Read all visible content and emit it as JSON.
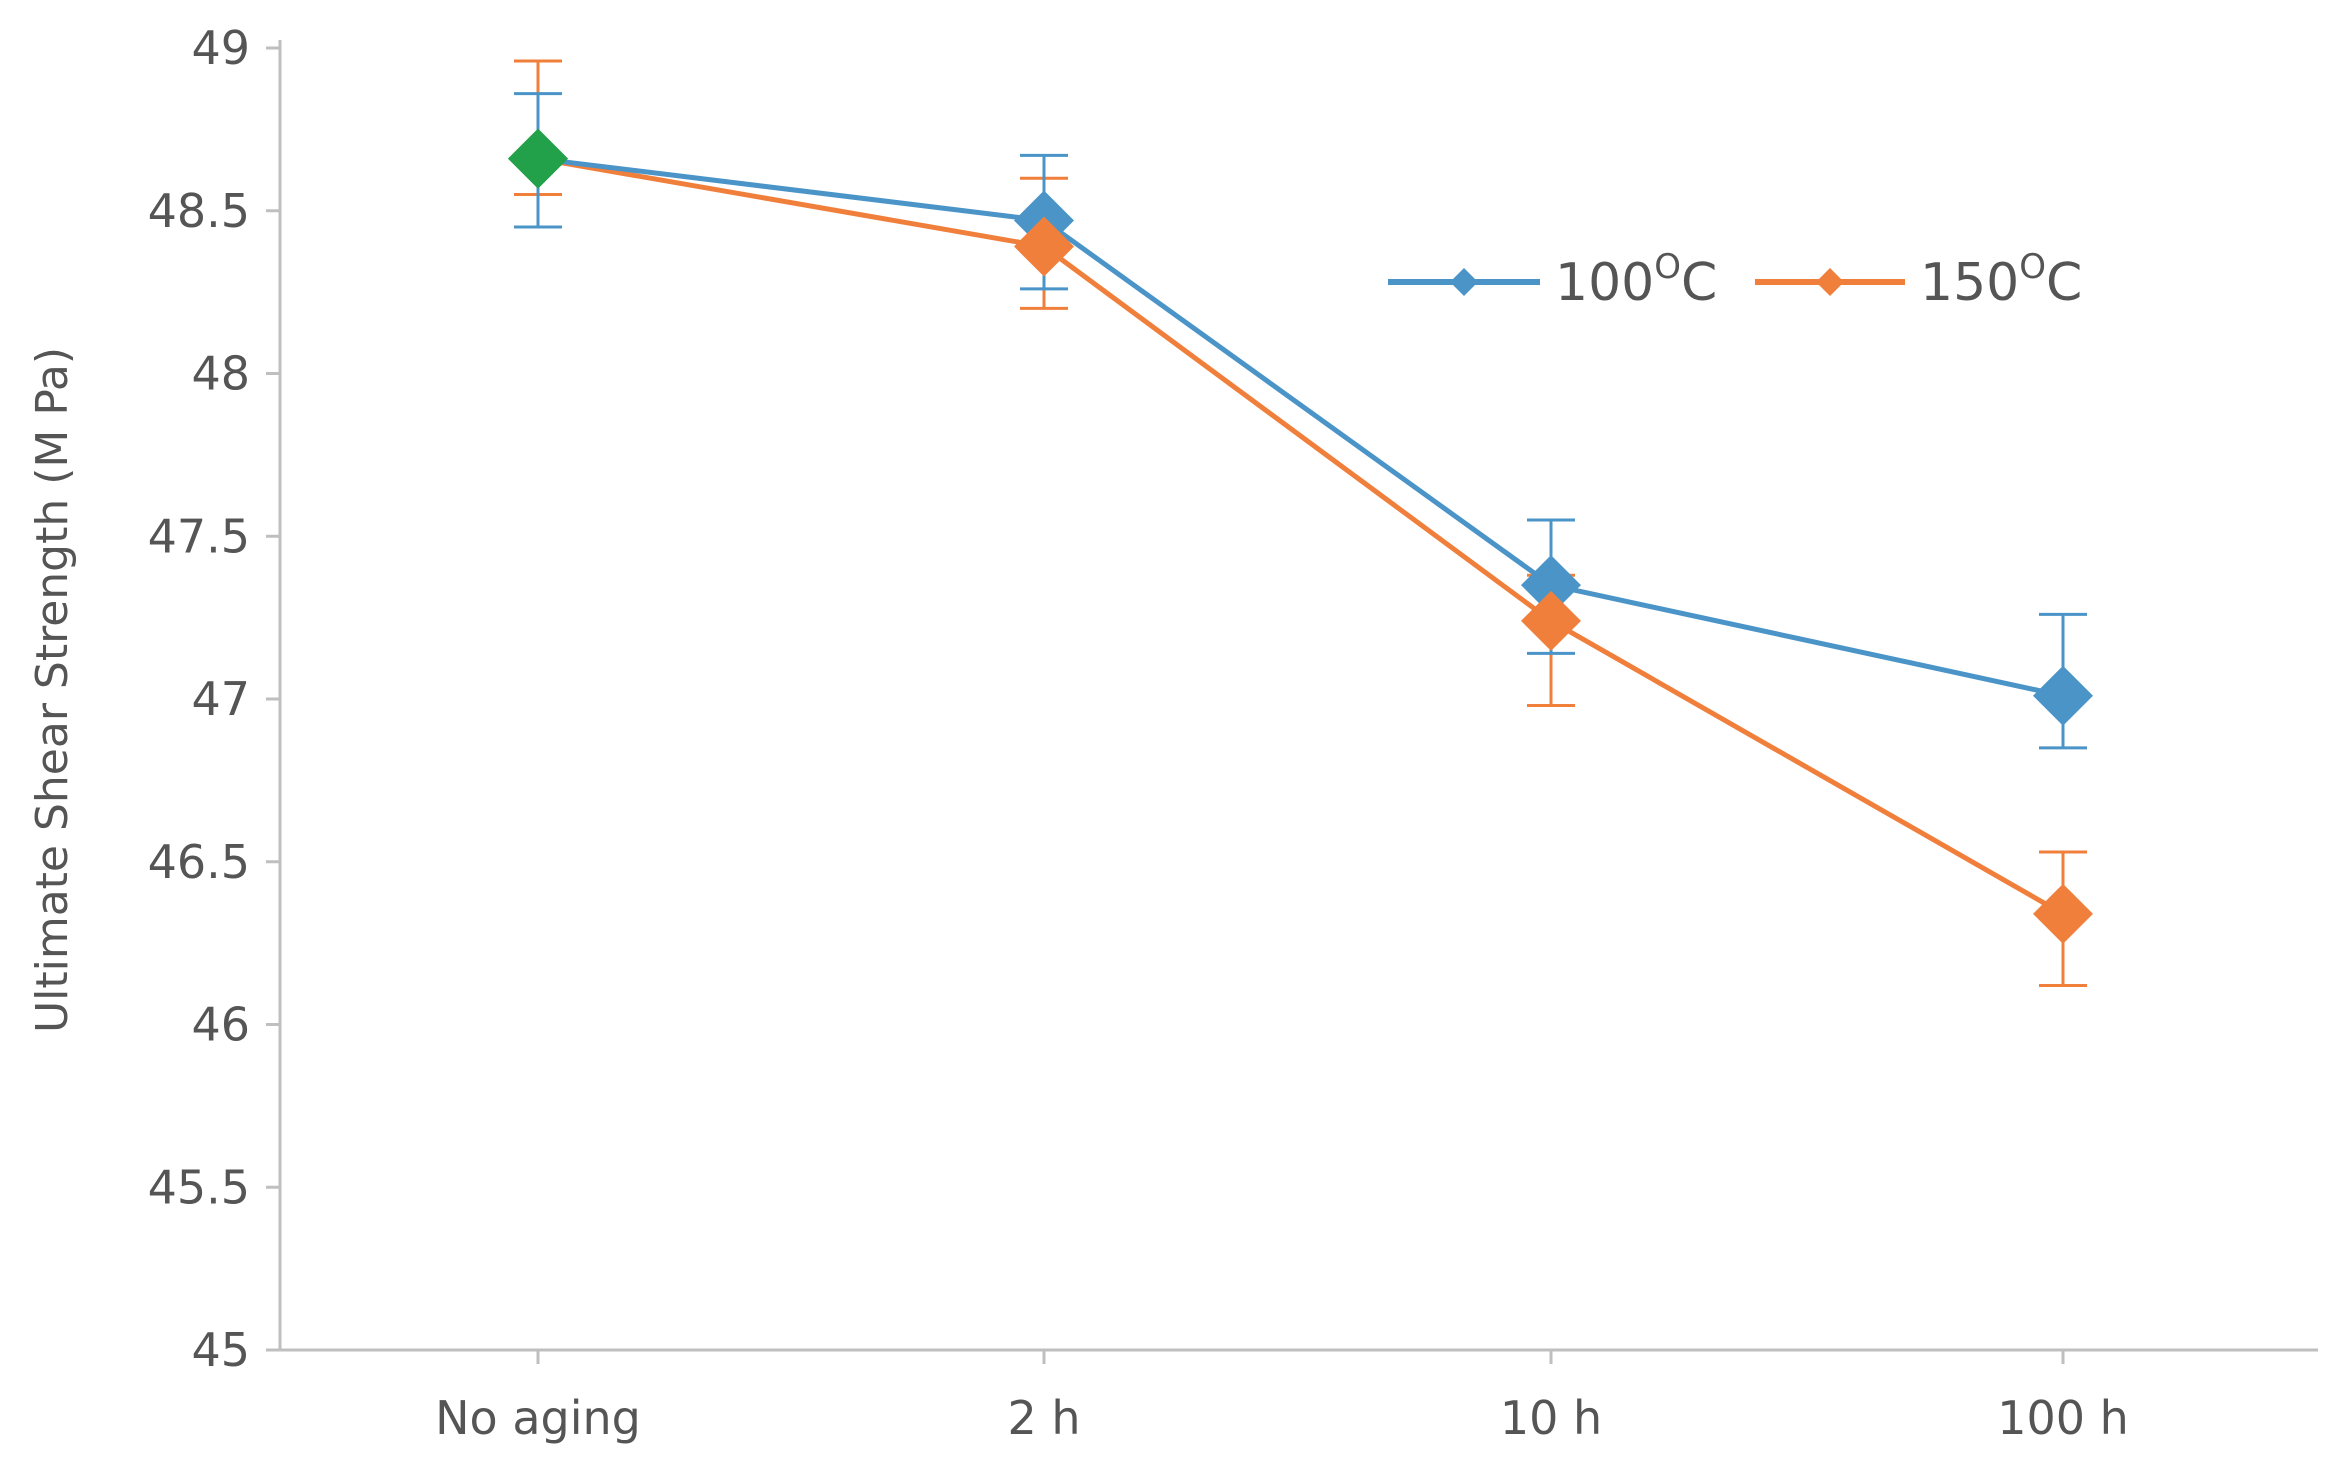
{
  "chart_data": {
    "type": "line",
    "title": "",
    "xlabel": "",
    "ylabel": "Ultimate Shear Strength (M Pa)",
    "categories": [
      "No aging",
      "2 h",
      "10 h",
      "100 h"
    ],
    "ylim": [
      45,
      49
    ],
    "yticks": [
      45,
      45.5,
      46,
      46.5,
      47,
      47.5,
      48,
      48.5,
      49
    ],
    "ytick_labels": [
      "45",
      "45.5",
      "46",
      "46.5",
      "47",
      "47.5",
      "48",
      "48.5",
      "49"
    ],
    "grid": false,
    "legend_position": "top-right",
    "series": [
      {
        "name": "100",
        "name_sup": "O",
        "name_unit": "C",
        "color": "#4a94c8",
        "values": [
          48.66,
          48.47,
          47.35,
          47.01
        ],
        "err_upper": [
          48.86,
          48.67,
          47.55,
          47.26
        ],
        "err_lower": [
          48.45,
          48.26,
          47.14,
          46.85
        ]
      },
      {
        "name": "150",
        "name_sup": "O",
        "name_unit": "C",
        "color": "#f07f3c",
        "values": [
          48.66,
          48.39,
          47.24,
          46.34
        ],
        "err_upper": [
          48.96,
          48.6,
          47.38,
          46.53
        ],
        "err_lower": [
          48.55,
          48.2,
          46.98,
          46.12
        ]
      }
    ],
    "first_point_color": "#22a04a"
  }
}
